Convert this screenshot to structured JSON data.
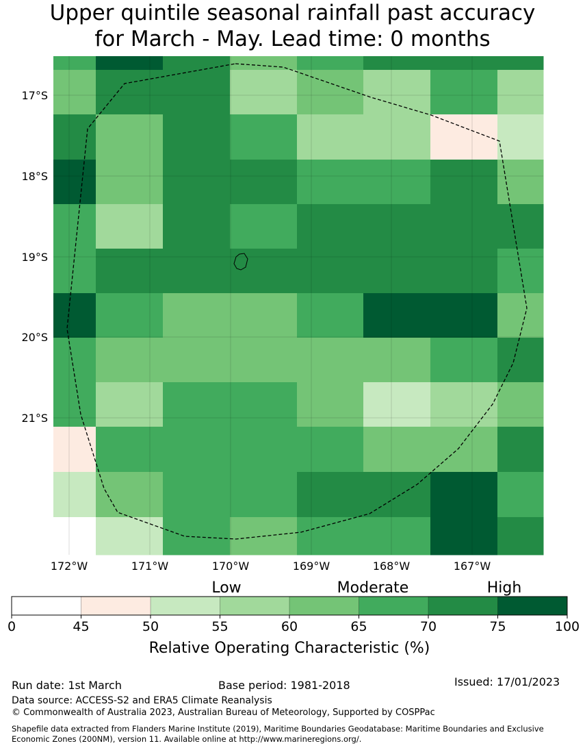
{
  "title": {
    "line1": "Upper quintile seasonal rainfall past accuracy",
    "line2": "for March - May. Lead time: 0 months"
  },
  "map": {
    "lat_labels": [
      "17°S",
      "18°S",
      "19°S",
      "20°S",
      "21°S"
    ],
    "lon_labels": [
      "172°W",
      "171°W",
      "170°W",
      "169°W",
      "168°W",
      "167°W"
    ],
    "grid_values_pct": [
      [
        67,
        77,
        72,
        62,
        67,
        72,
        72,
        72
      ],
      [
        62,
        72,
        72,
        57,
        62,
        57,
        67,
        57
      ],
      [
        72,
        62,
        72,
        67,
        57,
        57,
        47,
        52
      ],
      [
        77,
        62,
        72,
        72,
        67,
        67,
        72,
        62
      ],
      [
        67,
        57,
        72,
        67,
        72,
        72,
        72,
        72
      ],
      [
        67,
        72,
        72,
        72,
        72,
        72,
        72,
        67
      ],
      [
        77,
        67,
        62,
        62,
        67,
        77,
        77,
        62
      ],
      [
        67,
        62,
        62,
        62,
        62,
        62,
        67,
        72
      ],
      [
        67,
        57,
        67,
        67,
        62,
        52,
        57,
        62
      ],
      [
        47,
        67,
        67,
        67,
        67,
        62,
        62,
        72
      ],
      [
        52,
        62,
        67,
        67,
        72,
        72,
        77,
        67
      ],
      [
        40,
        52,
        67,
        62,
        67,
        67,
        77,
        72
      ]
    ]
  },
  "colorbar": {
    "category_labels": [
      "Low",
      "Moderate",
      "High"
    ],
    "ticks": [
      "0",
      "45",
      "50",
      "55",
      "60",
      "65",
      "70",
      "75",
      "100"
    ],
    "colors": [
      "#ffffff",
      "#fdebe1",
      "#c7e9c0",
      "#a1d99b",
      "#74c476",
      "#41ab5d",
      "#238b45",
      "#005a32"
    ],
    "axis_label": "Relative Operating Characteristic (%)"
  },
  "footer": {
    "run_date": "Run date: 1st March",
    "base_period": "Base period: 1981-2018",
    "issued": "Issued: 17/01/2023",
    "data_source": "Data source: ACCESS-S2 and ERA5 Climate Reanalysis",
    "copyright": "© Commonwealth of Australia 2023, Australian Bureau of Meteorology, Supported by COSPPac",
    "shapefile_line1": "Shapefile data extracted from Flanders Marine Institute (2019), Maritime Boundaries Geodatabase: Maritime Boundaries and Exclusive",
    "shapefile_line2": "Economic Zones (200NM), version 11. Available online at http://www.marineregions.org/."
  }
}
